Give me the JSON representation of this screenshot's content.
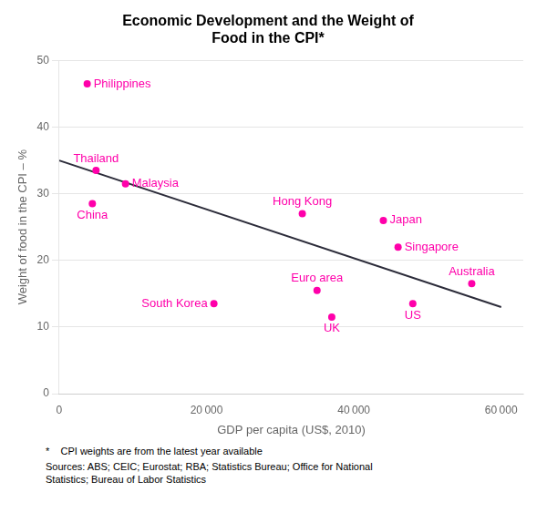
{
  "chart_data": {
    "type": "scatter",
    "title": "Economic Development and the Weight of\nFood in the CPI*",
    "xlabel": "GDP per capita (US$, 2010)",
    "ylabel": "Weight of food in the CPI – %",
    "annotations": [
      "*    CPI weights are from the latest year available",
      "Sources: ABS; CEIC; Eurostat; RBA; Statistics Bureau; Office for National\nStatistics; Bureau of Labor Statistics"
    ],
    "series": [
      {
        "type": "scatter",
        "color": "#FF00AA",
        "labels": [
          "Philippines",
          "Thailand",
          "Malaysia",
          "China",
          "South Korea",
          "Hong Kong",
          "Euro area",
          "UK",
          "Japan",
          "Singapore",
          "US",
          "Australia"
        ],
        "x": [
          3800,
          5000,
          9000,
          4500,
          21000,
          33000,
          35000,
          37000,
          44000,
          46000,
          48000,
          56000
        ],
        "values": [
          46.5,
          33.5,
          31.5,
          28.5,
          13.5,
          27.0,
          15.5,
          11.5,
          26.0,
          22.0,
          13.5,
          16.5
        ]
      },
      {
        "type": "line",
        "color": "#2c2c3a",
        "x": [
          0,
          60000
        ],
        "values": [
          35.0,
          13.0
        ]
      }
    ],
    "xlim": [
      0,
      63000
    ],
    "ylim": [
      0,
      50
    ],
    "xticks": [
      0,
      {
        "value": 20000,
        "label": "20 000"
      },
      {
        "value": 40000,
        "label": "40 000"
      },
      {
        "value": 60000,
        "label": "60 000"
      }
    ],
    "yticks": [
      0,
      10,
      20,
      30,
      40,
      50
    ],
    "grid": "y"
  }
}
